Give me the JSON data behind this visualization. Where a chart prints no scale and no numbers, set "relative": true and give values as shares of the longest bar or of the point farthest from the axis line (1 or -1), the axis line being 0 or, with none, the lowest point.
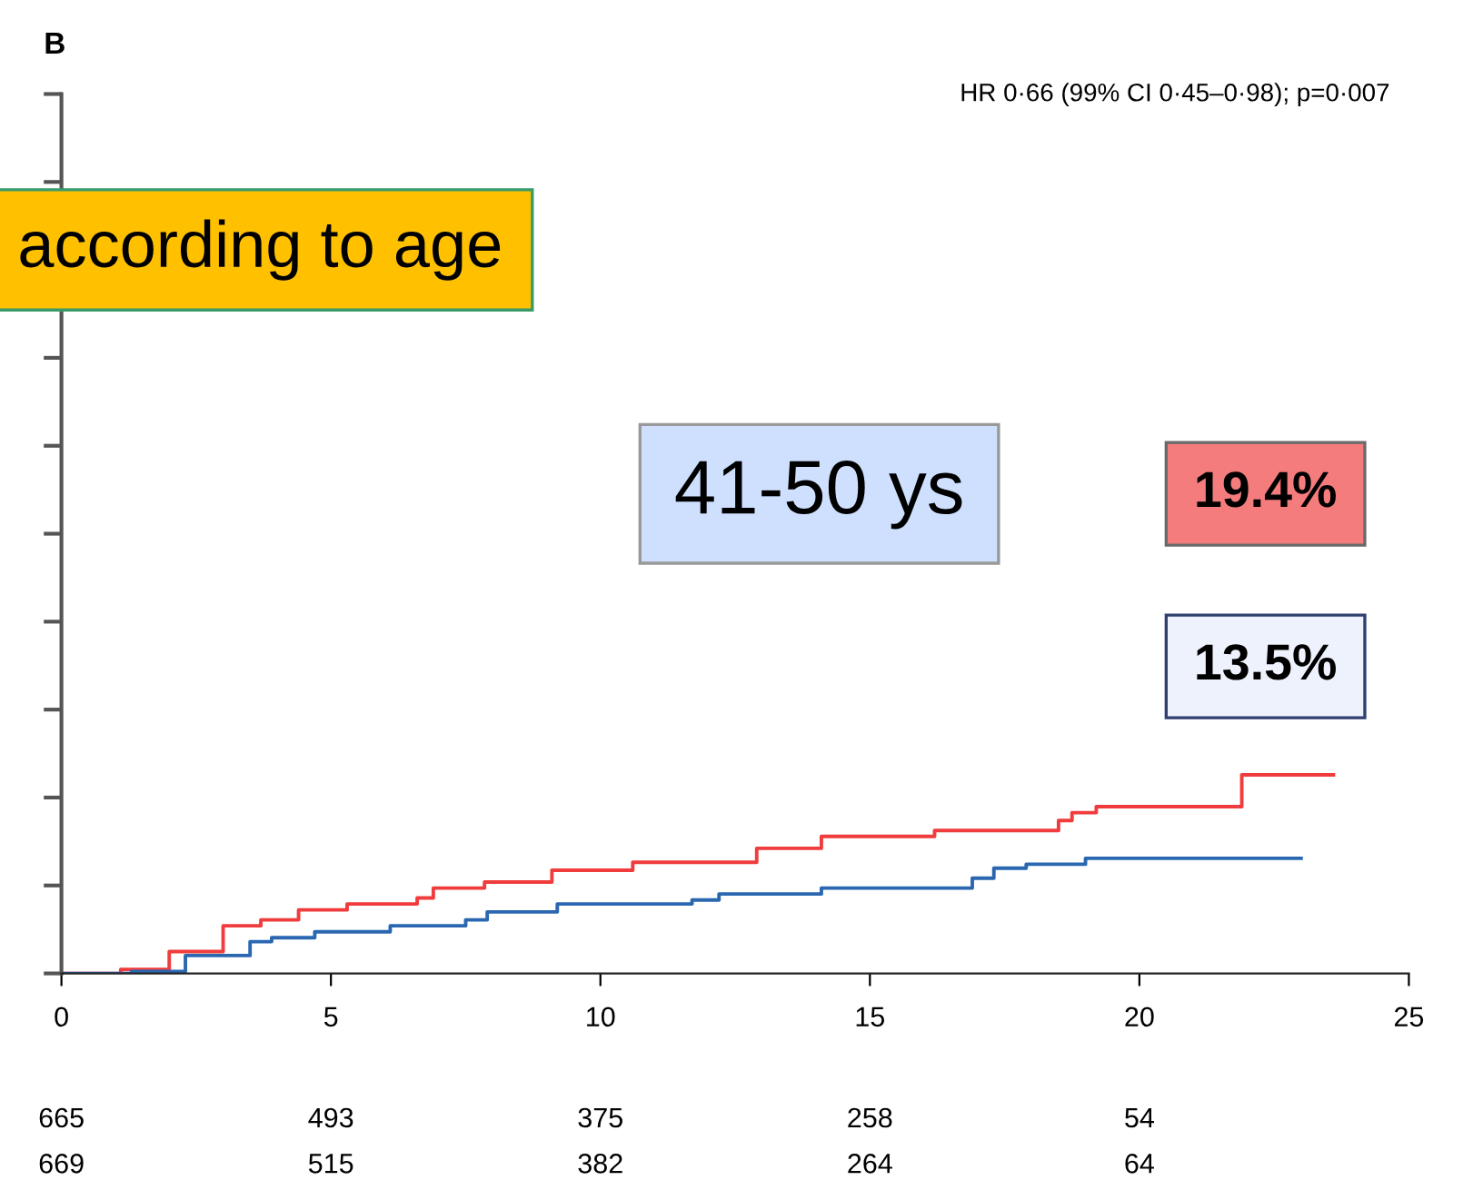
{
  "chart_data": {
    "type": "step",
    "relative": true,
    "xlim": [
      0,
      25
    ],
    "xticks": [
      0,
      5,
      10,
      15,
      20,
      25
    ],
    "grid": false,
    "series": [
      {
        "color": "#f03c3c",
        "x": [
          0,
          1.1,
          2.0,
          3.0,
          3.7,
          4.4,
          5.3,
          6.6,
          6.9,
          7.85,
          9.1,
          10.6,
          11.5,
          12.9,
          14.1,
          15.3,
          16.2,
          17.5,
          18.5,
          18.75,
          19.2,
          21.9,
          21.9,
          23.6
        ],
        "values": [
          0,
          0.02,
          0.11,
          0.24,
          0.27,
          0.32,
          0.35,
          0.38,
          0.43,
          0.46,
          0.52,
          0.56,
          0.56,
          0.63,
          0.69,
          0.69,
          0.72,
          0.72,
          0.77,
          0.81,
          0.84,
          0.84,
          1,
          1
        ]
      },
      {
        "color": "#2a67b1",
        "x": [
          0,
          1.3,
          2.3,
          3.5,
          3.9,
          4.7,
          6.1,
          7.5,
          7.9,
          9.2,
          11.7,
          12.2,
          14.1,
          16.9,
          17.3,
          17.9,
          19.0,
          23.0
        ],
        "values": [
          0,
          0.01,
          0.09,
          0.16,
          0.18,
          0.21,
          0.24,
          0.27,
          0.31,
          0.35,
          0.37,
          0.4,
          0.43,
          0.48,
          0.53,
          0.55,
          0.58,
          0.58
        ]
      }
    ],
    "annotations": [
      "B",
      "HR 0·66 (99% CI 0·45–0·98); p=0·007",
      "according to age",
      "41-50 ys",
      "19.4%",
      "13.5%",
      "665",
      "493",
      "375",
      "258",
      "54",
      "669",
      "515",
      "382",
      "264",
      "64"
    ]
  }
}
